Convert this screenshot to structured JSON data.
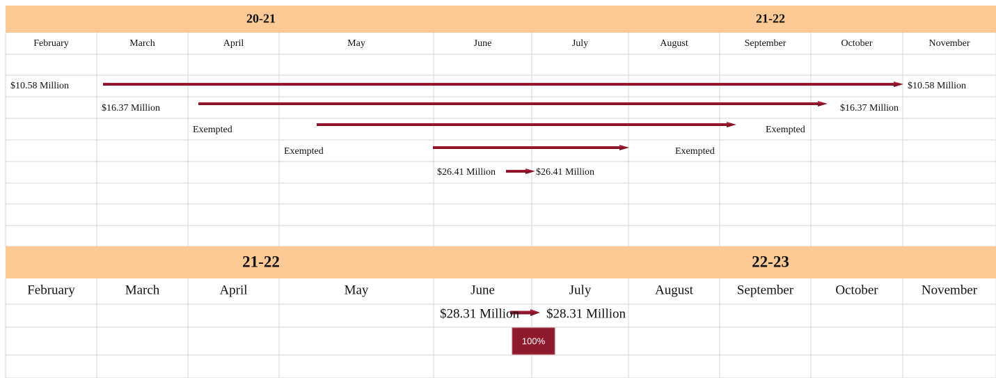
{
  "sections": [
    {
      "periods": [
        "20-21",
        "21-22"
      ],
      "months": [
        "February",
        "March",
        "April",
        "May",
        "June",
        "July",
        "August",
        "September",
        "October",
        "November"
      ],
      "transfers": [
        {
          "from": "$10.58 Million",
          "to": "$10.58 Million"
        },
        {
          "from": "$16.37 Million",
          "to": "$16.37 Million"
        },
        {
          "from": "Exempted",
          "to": "Exempted"
        },
        {
          "from": "Exempted",
          "to": "Exempted"
        },
        {
          "from": "$26.41 Million",
          "to": "$26.41 Million"
        }
      ]
    },
    {
      "periods": [
        "21-22",
        "22-23"
      ],
      "months": [
        "February",
        "March",
        "April",
        "May",
        "June",
        "July",
        "August",
        "September",
        "October",
        "November"
      ],
      "transfers": [
        {
          "from": "$28.31 Million",
          "to": "$28.31 Million"
        }
      ],
      "badge": "100%"
    }
  ]
}
